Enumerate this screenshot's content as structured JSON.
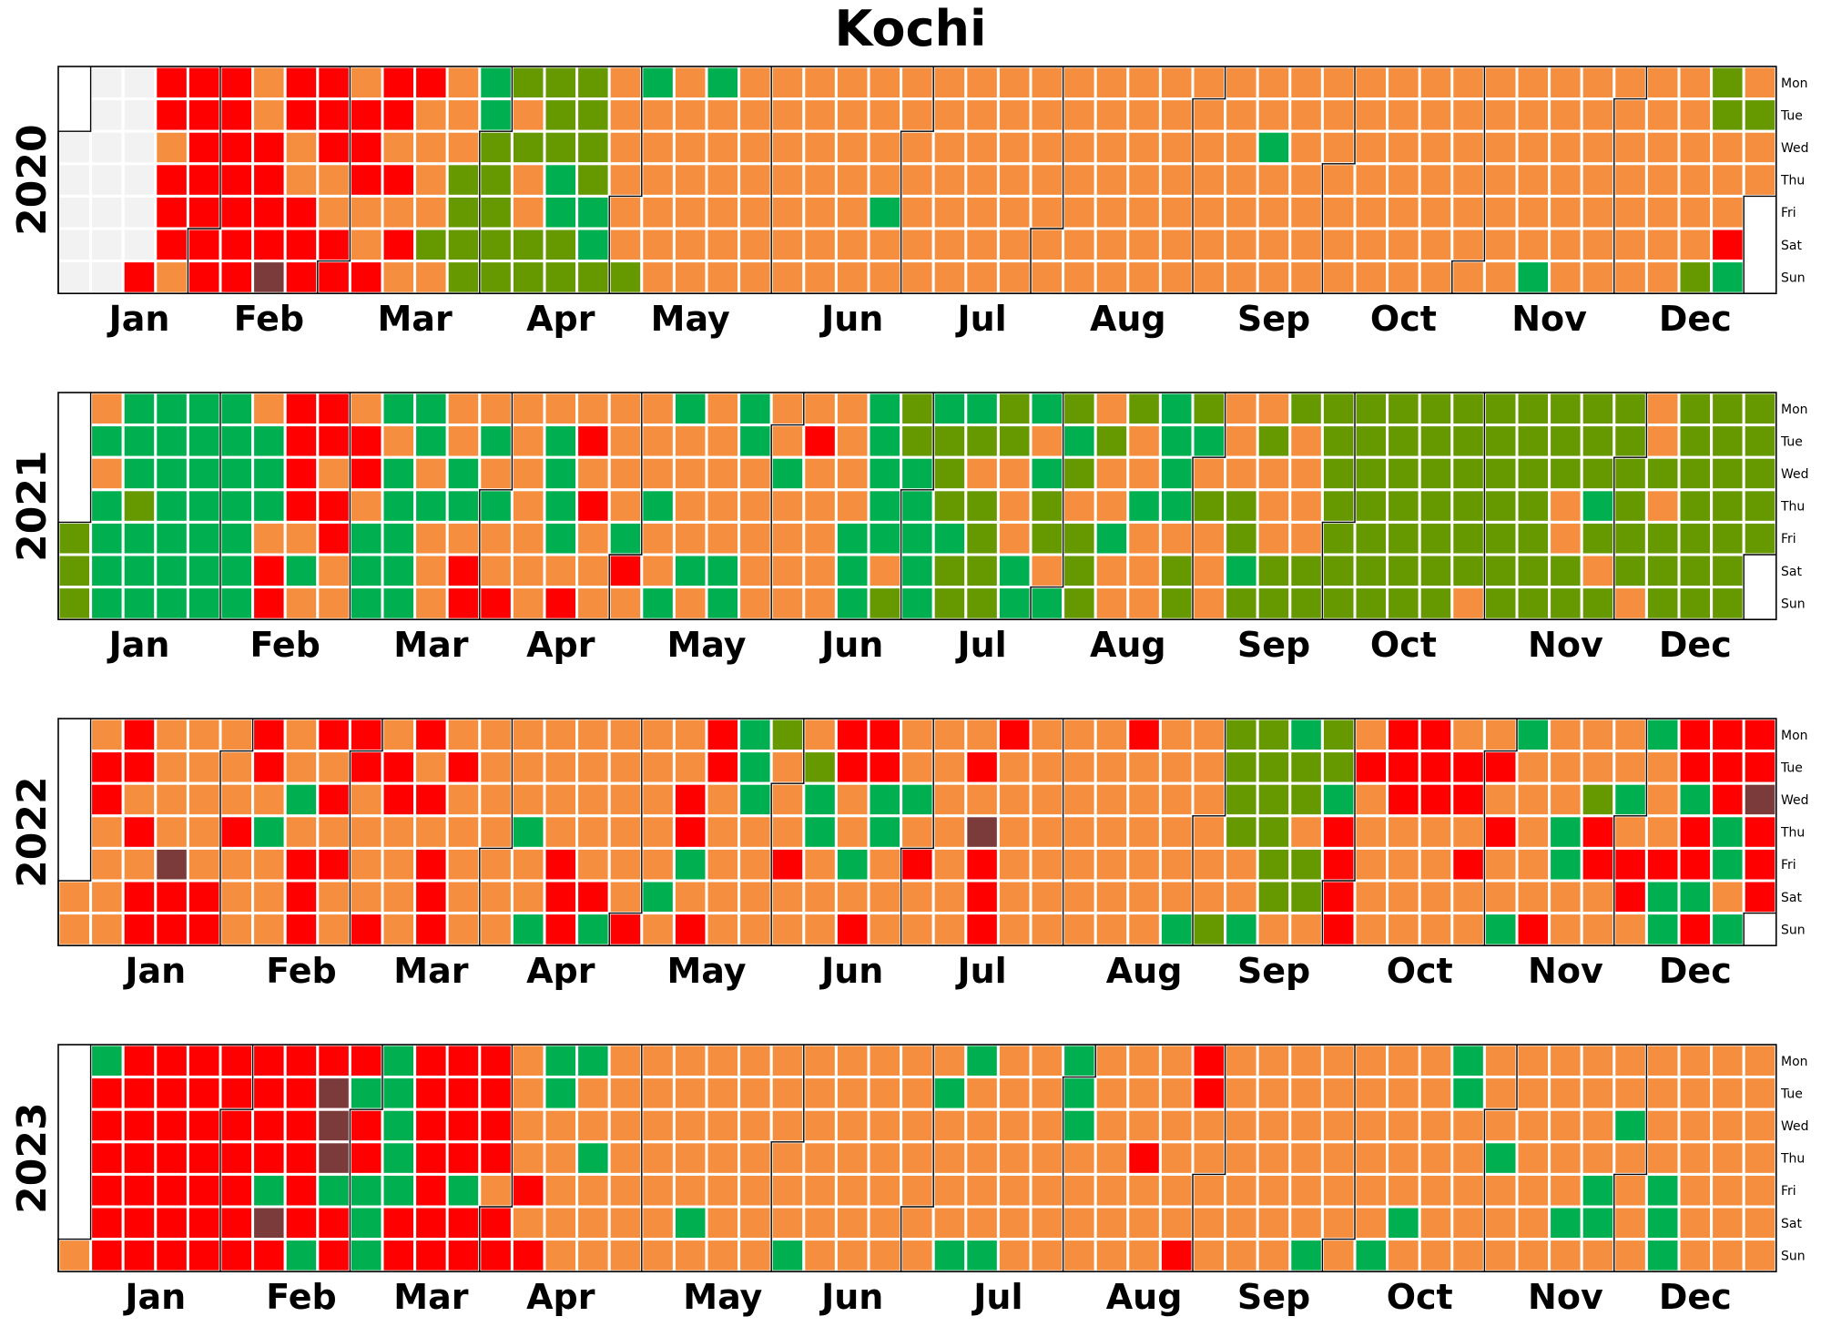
{
  "chart_data": {
    "type": "heatmap",
    "title": "Kochi",
    "weekday_labels": [
      "Mon",
      "Tue",
      "Wed",
      "Thu",
      "Fri",
      "Sat",
      "Sun"
    ],
    "month_labels": [
      "Jan",
      "Feb",
      "Mar",
      "Apr",
      "May",
      "Jun",
      "Jul",
      "Aug",
      "Sep",
      "Oct",
      "Nov",
      "Dec"
    ],
    "palette": {
      "G": "#00b050",
      "O": "#669900",
      "S": "#f58f3f",
      "R": "#ff0000",
      "M": "#7b3b3b",
      "N": "#f2f2f2"
    },
    "category_order": [
      "G",
      "O",
      "S",
      "R",
      "M"
    ],
    "no_data_code": "N",
    "years": [
      {
        "year": "2020",
        "first_weekday": 2,
        "week_strings": [
          "NNNNNNNNNNNNNNNNNNRRRSRRRSRRRRRRRRRRRRRRSSRRRRMRRSSRRRRRRSSRRSRRRSSRRRSRSRSRSSSSOSSSSOOOOGGOOOOOOSOSSOOOOOGGOOOOOOGGOSSSSSSOGSSSSS",
          "SSSSSSSSGSSSSSSSSSSSSSSSSSSSSSSSSSSSSSSSSSSSSSSGSSSSSSSSSSSSSSSSSSSSSSSSSSSSSSSSSSSSSSSSSSSSSSSSSSSSSSSSSSSSSSSSSSSSSSSSSSSSSSSSSG",
          "SSSSSSSSSSSSSSSSSSSSSSSSSSSSSSSSSSSSSSSSSSSSSSSSSSSSSSSSSSSGSSSSSSSSSSSSSSSSSSSSSSSSSSSSSSSSSSOOOSSSRGSOSSOSOGSSGGGGGGGGGGGGGGGGGG",
          "GGGGGGGGGGGGGGGGGGGGGGGGGGRRRRRRGRRMRRRRRRRRRRRGRRRGGRRRRRSGSSGGSGGGGGGGGGSOOOGOGSOGSSOSSGGGGSGGRSSSSRSRRS"
        ]
      },
      {
        "year": "2021",
        "first_weekday": 4,
        "week_strings": [
          "OOOSGSGGGGGGGOGGGGGGGGGGGGGGGGGGGGGGGGSGGGSRRRRRRSGSRRSRRSSSRRSGGGGSGGGGGGGSGSSSSSGGSRRSGSGSSRSSSSSSSSGGGGSRSRSRSSSSSSSGRSSSSGSSGGS",
          "SSSGSSSSSSGGGGSSSSSSSGSSSSSRSSSSSSSSSGGGGGGGGSOOOGGGGGGOOOGOOGOSOOOOOOSSSGGGSGOOSGOGOSOOOSOSSGSSOSSGSSSGGGGSOOOGSOSSSSSSOOGOSOSSSOOO",
          "SSSSOOOOOOOOOOOOOOOOOOOOOOOOOOOOOOOOOOOOSOOOOOOOOOOOOOOOOOSSOOOOOGOSOOOOOOOSSSOSOOOOOOOOOOOOOOOOOOOOOOOOOOOOGSSSSSSOOOOOOOOOOOOOOGSS",
          "SOOOOOOOOOOSSSOOGGGGOSSSGGSSSGRSSOOSSSRRSSSSRRRMMRRRSRSRRRSR"
        ]
      },
      {
        "year": "2022",
        "first_weekday": 5,
        "week_strings": [
          "SSSRRSSSSRRSRSRRSSSSMRRSSSSSRRSSSRSSSRRSGSSSSSGSRRRRSRSRSSRRSSSSRSRRSSSSRSRSRRRSRSSSSSSSSSSSSSSSGSSGSSSSRRRSSSSSRGSSSSSSRSSSSSGSSSRRG",
          "SRRRSSSSSGGGSSSSOSSSRSSSOGGSSSRRSSGSRRRGGSSSSSGSRSSSSSSSSSSRSMRRRRSSSSSSSSSSSSSSSSSSSSSSSSSSSRSSSSSSSSSSSSGSSSSSSOOOOOSSGOOOOOOSGOO",
          "SOOSOOGRRRRSRSSSSSRRRSSSSRRRSSSSSRRSRSSSRSRSSGGSSSSSRSSSGGSSSSORRSSSSGSRRSGSSSRGGRRGRRGRRRRGGSGRRMRRRRRGRGGGGSOOOOOOSGGSSSSSRSSRSGSR",
          "GSRRSSSSSRSRGMMMMMRRRRMMMGOOGSSSGGGGGGMGGMMMMMMMMRGRRRRGRRRGGGGRRRRRGGGRGGSSRMS"
        ]
      },
      {
        "year": "2023",
        "first_weekday": 6,
        "week_strings": [
          "SGRRRRRRRRRRRRRRRRRRRRRRRRRRRRRRRRRRRRRRGMRRRRRRRGRMMMGRRRGRRGGGGGGGGRRRRRRRRRRRRRGRRRRRRSRRSSSSRSRGGSSSSSGSSGSSSSSSSSSSSSSSSSSSSSSS",
          "GSSSSSSSSSSSSSSSSSSSSSGSSSSSSSSSSSSSSSSSSSSSSSSSSSSSGSSSSGGSSSSSGSSSSSSSSSSSSSSGGGSSSSSSSSSSSSSSRSSSSSSSSSRRRSSSSSSSSSSSSSSSSSSSSSSS",
          "SSGSSSSSSSSSSSSSGSSSSSGSSSSSSSSGGSSSSSSSSGSSSSSSSSSSSSSSSGSSSSSGGSSSGSSSSSSSSGGGSSSSSSSSSSSSSSSSSSSSSGSSSSSSSSSSSGSSSSSSSSSSSSSSSS",
          "SSSSSSSSSSSOSSSSGGGGGGGGSSSGGGSSSSSSSOOSGGSGOGRSSSSSSGOSSOOGGSSRSSSSGSSSSRSGGGGSGSSGSSSSRRRRRSGRSSSRRSRSSSSOSSSRSSSSSSSSSSRRRRRGGRRS"
        ]
      }
    ]
  }
}
